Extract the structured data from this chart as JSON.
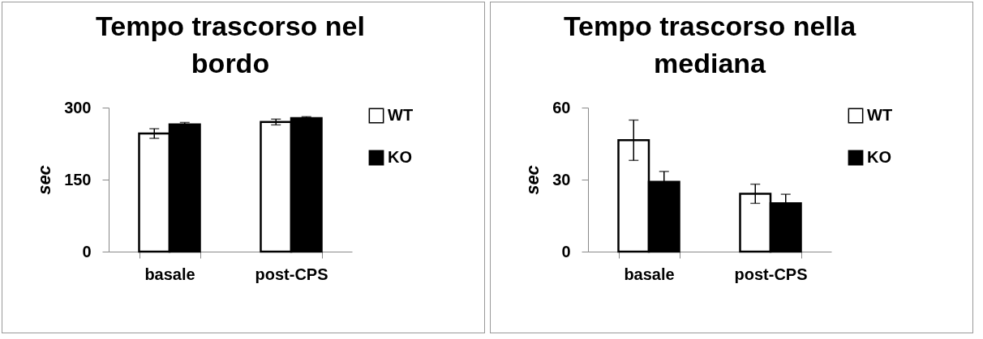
{
  "chart_data": [
    {
      "type": "bar",
      "title": "Tempo trascorso nel bordo",
      "ylabel": "sec",
      "categories": [
        "basale",
        "post-CPS"
      ],
      "ylim": [
        0,
        300
      ],
      "yticks": [
        0,
        150,
        300
      ],
      "legend": "right",
      "grid": false,
      "series": [
        {
          "name": "WT",
          "color": "#ffffff",
          "values": [
            246,
            270
          ],
          "errors": [
            10,
            6
          ]
        },
        {
          "name": "KO",
          "color": "#000000",
          "values": [
            265,
            278
          ],
          "errors": [
            4,
            3
          ]
        }
      ]
    },
    {
      "type": "bar",
      "title": "Tempo trascorso nella mediana",
      "ylabel": "sec",
      "categories": [
        "basale",
        "post-CPS"
      ],
      "ylim": [
        0,
        60
      ],
      "yticks": [
        0,
        30,
        60
      ],
      "legend": "right",
      "grid": false,
      "series": [
        {
          "name": "WT",
          "color": "#ffffff",
          "values": [
            46.4,
            24.1
          ],
          "errors": [
            8.4,
            4
          ]
        },
        {
          "name": "KO",
          "color": "#000000",
          "values": [
            29.1,
            20.1
          ],
          "errors": [
            4.3,
            3.8
          ]
        }
      ]
    }
  ]
}
